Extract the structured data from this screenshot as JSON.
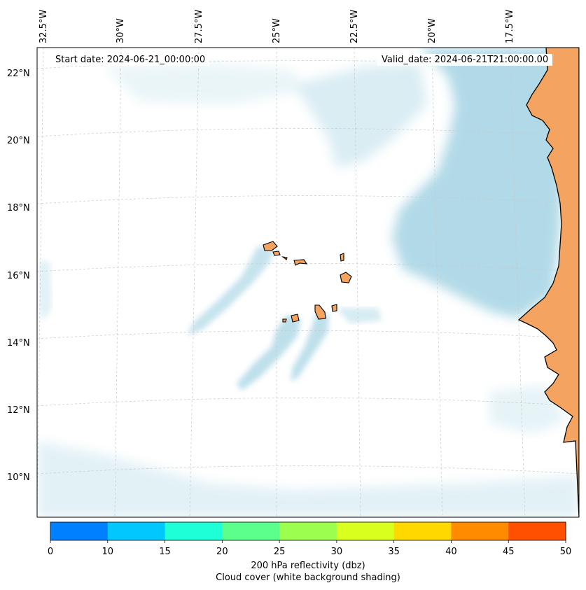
{
  "map": {
    "start_date": "Start date: 2024-06-21_00:00:00",
    "valid_date": "Valid_date: 2024-06-21T21:00:00.00",
    "lon_labels": [
      "32.5°W",
      "30°W",
      "27.5°W",
      "25°W",
      "22.5°W",
      "20°W",
      "17.5°W"
    ],
    "lat_labels": [
      "22°N",
      "20°N",
      "18°N",
      "16°N",
      "14°N",
      "12°N",
      "10°N"
    ],
    "land_color": "#f4a460",
    "cloud_color": "#add8e6"
  },
  "colorbar": {
    "ticks": [
      "0",
      "10",
      "15",
      "20",
      "25",
      "30",
      "35",
      "40",
      "45",
      "50"
    ],
    "colors": [
      "#0080ff",
      "#00c8ff",
      "#1effd8",
      "#5cff8c",
      "#9cff50",
      "#d8ff1e",
      "#ffd800",
      "#ff8c00",
      "#ff5000"
    ],
    "label": "200 hPa reflectivity (dbz)",
    "sublabel": "Cloud cover (white background shading)"
  }
}
